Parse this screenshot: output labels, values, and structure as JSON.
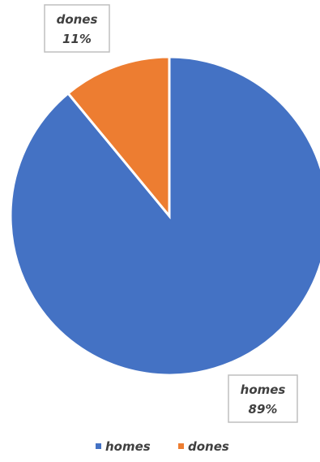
{
  "chart_data": {
    "type": "pie",
    "title": "",
    "start_angle_deg": 0,
    "direction": "clockwise",
    "slices": [
      {
        "name": "homes",
        "value": 89,
        "label_name": "homes",
        "label_pct": "89%",
        "color": "#4472C4"
      },
      {
        "name": "dones",
        "value": 11,
        "label_name": "dones",
        "label_pct": "11%",
        "color": "#ED7D31"
      }
    ],
    "legend": {
      "position": "bottom",
      "entries": [
        {
          "name": "homes",
          "color": "#4472C4"
        },
        {
          "name": "dones",
          "color": "#ED7D31"
        }
      ]
    }
  }
}
